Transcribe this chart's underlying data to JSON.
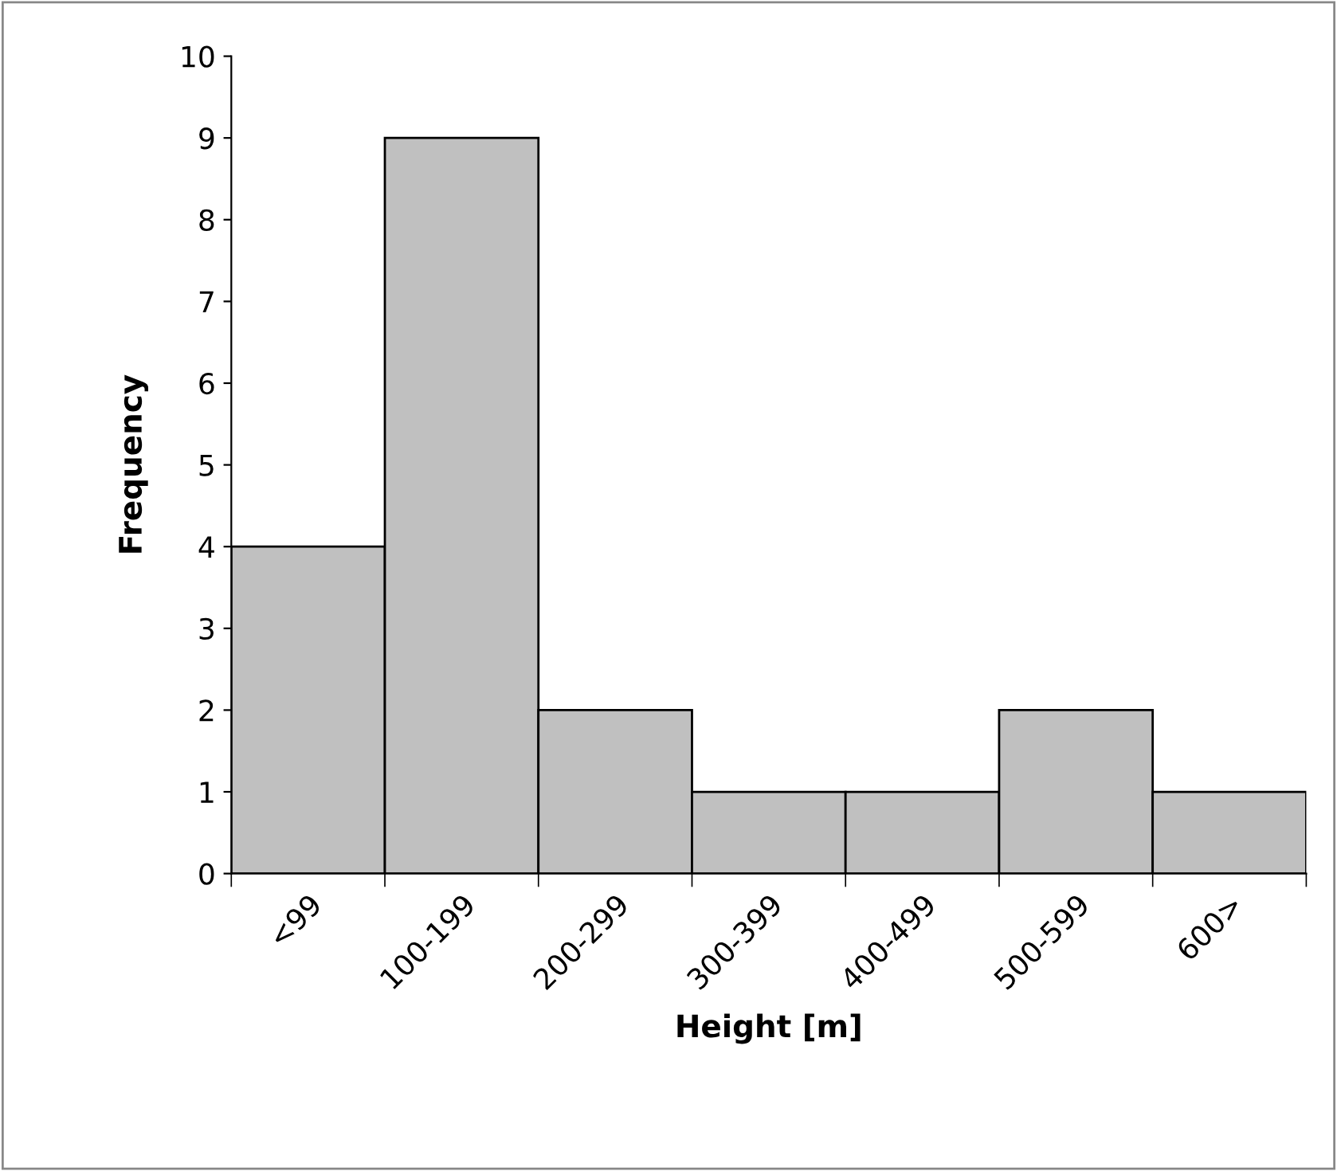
{
  "chart_data": {
    "type": "bar",
    "xlabel": "Height [m]",
    "ylabel": "Frequency",
    "categories": [
      "<99",
      "100-199",
      "200-299",
      "300-399",
      "400-499",
      "500-599",
      "600>"
    ],
    "values": [
      4,
      9,
      2,
      1,
      1,
      2,
      1
    ],
    "color": "#c0c0c0",
    "ylim": [
      0,
      10
    ],
    "yticks": [
      0,
      1,
      2,
      3,
      4,
      5,
      6,
      7,
      8,
      9,
      10
    ],
    "grid": false,
    "legend": false
  }
}
